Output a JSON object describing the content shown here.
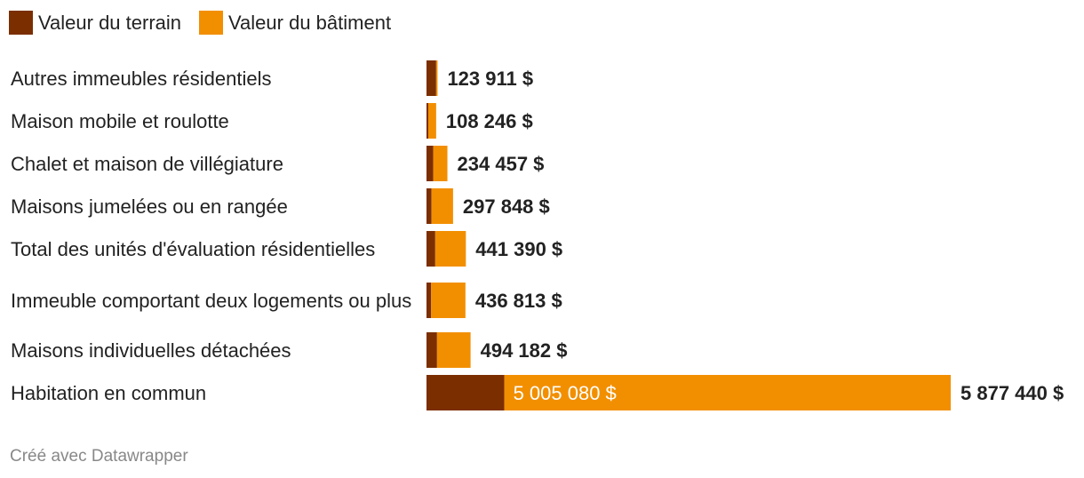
{
  "colors": {
    "terrain": "#7b2e00",
    "batiment": "#f28f00"
  },
  "legend": {
    "terrain": "Valeur du terrain",
    "batiment": "Valeur du bâtiment"
  },
  "footer": "Créé avec Datawrapper",
  "chart_data": {
    "type": "bar",
    "orientation": "horizontal",
    "stacked": true,
    "categories": [
      "Autres immeubles résidentiels",
      "Maison mobile et roulotte",
      "Chalet et maison de villégiature",
      "Maisons jumelées ou en rangée",
      "Total des unités d'évaluation résidentielles",
      "Immeuble comportant deux logements ou plus",
      "Maisons individuelles détachées",
      "Habitation en commun"
    ],
    "series": [
      {
        "name": "Valeur du terrain",
        "values": [
          108000,
          20000,
          75000,
          56000,
          98000,
          52000,
          118000,
          872360
        ]
      },
      {
        "name": "Valeur du bâtiment",
        "values": [
          15911,
          88246,
          159457,
          241848,
          343390,
          384813,
          376182,
          5005080
        ]
      }
    ],
    "totals": [
      123911,
      108246,
      234457,
      297848,
      441390,
      436813,
      494182,
      5877440
    ],
    "total_labels": [
      "123 911 $",
      "108 246 $",
      "234 457 $",
      "297 848 $",
      "441 390 $",
      "436 813 $",
      "494 182 $",
      "5 877 440 $"
    ],
    "inline_labels": [
      "",
      "",
      "",
      "",
      "",
      "",
      "",
      "5 005 080 $"
    ],
    "xlim": [
      0,
      5877440
    ],
    "legend_position": "top-left",
    "grid": false
  }
}
